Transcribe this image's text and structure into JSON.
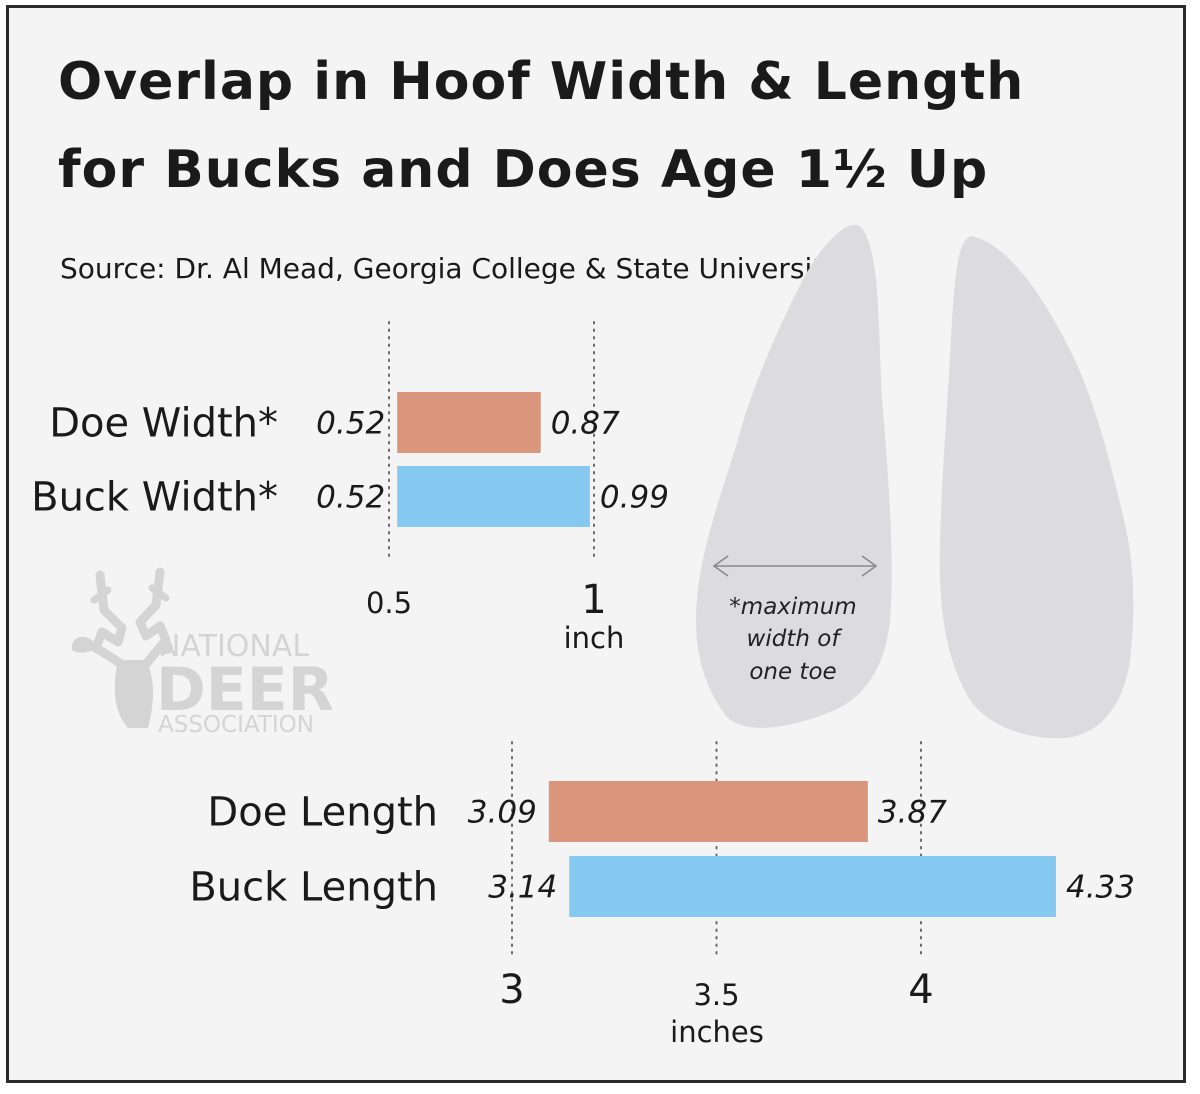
{
  "chart_data": [
    {
      "type": "bar",
      "orientation": "horizontal",
      "style": "floating-range",
      "title": "Overlap in Hoof Width & Length for Bucks and Does Age 1½ Up",
      "subtitle": "Source: Dr. Al Mead, Georgia College & State University",
      "xlabel": "inch",
      "categories": [
        "Doe Width*",
        "Buck Width*"
      ],
      "series": [
        {
          "name": "",
          "ranges": [
            [
              0.52,
              0.87
            ],
            [
              0.52,
              0.99
            ]
          ]
        }
      ],
      "start_labels": [
        "0.52",
        "0.52"
      ],
      "end_labels": [
        "0.87",
        "0.99"
      ],
      "ticks": [
        "0.5",
        "1"
      ],
      "tick_values": [
        0.5,
        1
      ],
      "xlim": [
        0.475,
        1.0
      ],
      "grid": "dotted vertical",
      "colors": [
        "#d9967c",
        "#85c9f0"
      ],
      "annotation": [
        "*maximum",
        "width of",
        "one toe"
      ]
    },
    {
      "type": "bar",
      "orientation": "horizontal",
      "style": "floating-range",
      "xlabel": "inches",
      "categories": [
        "Doe Length",
        "Buck Length"
      ],
      "series": [
        {
          "name": "",
          "ranges": [
            [
              3.09,
              3.87
            ],
            [
              3.14,
              4.33
            ]
          ]
        }
      ],
      "start_labels": [
        "3.09",
        "3.14"
      ],
      "end_labels": [
        "3.87",
        "4.33"
      ],
      "ticks": [
        "3",
        "3.5",
        "4"
      ],
      "tick_values": [
        3,
        3.5,
        4
      ],
      "xlim": [
        3.0,
        4.33
      ],
      "grid": "dotted vertical",
      "colors": [
        "#d9967c",
        "#85c9f0"
      ]
    }
  ],
  "logo": {
    "line1": "NATIONAL",
    "line2": "DEER",
    "line3": "ASSOCIATION"
  },
  "colors": {
    "doe": "#d9967c",
    "buck": "#85c9f0",
    "hoof": "#dcdcde",
    "background": "#f4f4f4"
  }
}
